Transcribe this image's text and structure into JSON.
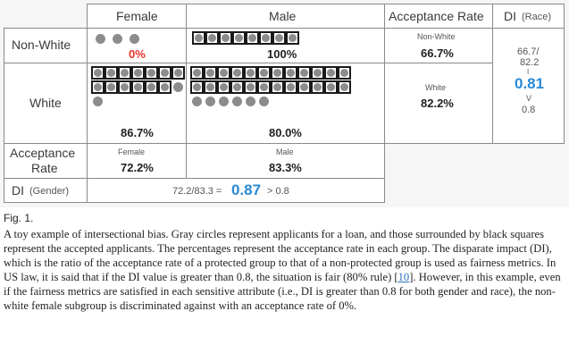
{
  "table": {
    "col_headers": {
      "female": "Female",
      "male": "Male",
      "acceptance_rate": "Acceptance Rate",
      "di": "DI",
      "di_suffix": "(Race)"
    },
    "row_headers": {
      "non_white": "Non-White",
      "white": "White",
      "acceptance_rate_line1": "Acceptance",
      "acceptance_rate_line2": "Rate",
      "di": "DI",
      "di_suffix": "(Gender)"
    },
    "cells": {
      "nonwhite_female_rate": "0%",
      "nonwhite_male_rate": "100%",
      "white_female_rate": "86.7%",
      "white_male_rate": "80.0%",
      "race_nonwhite_label": "Non-White",
      "race_nonwhite_rate": "66.7%",
      "race_white_label": "White",
      "race_white_rate": "82.2%",
      "gender_female_label": "Female",
      "gender_female_rate": "72.2%",
      "gender_male_label": "Male",
      "gender_male_rate": "83.3%"
    },
    "di_race": {
      "formula_top": "66.7/",
      "formula_bottom": "82.2",
      "bar": "I",
      "value": "0.81",
      "compare": "V",
      "threshold": "0.8"
    },
    "di_gender": {
      "formula": "72.2/83.3 =",
      "value": "0.87",
      "compare": "> 0.8"
    },
    "applicants": {
      "nonwhite_female": {
        "accepted": 0,
        "rejected": 3
      },
      "nonwhite_male": {
        "accepted": 6,
        "rejected": 0
      },
      "white_female": {
        "accepted": 13,
        "rejected": 2
      },
      "white_male": {
        "accepted": 24,
        "rejected": 6
      }
    },
    "colors": {
      "accent_blue": "#2a8ad6",
      "accent_red": "#e8342a",
      "circle_gray": "#8c8c8c"
    }
  },
  "caption": {
    "label": "Fig. 1.",
    "text_before_cite": "A toy example of intersectional bias. Gray circles represent applicants for a loan, and those surrounded by black squares represent the accepted applicants. The percentages represent the acceptance rate in each group. The disparate impact (DI), which is the ratio of the acceptance rate of a protected group to that of a non-protected group is used as fairness metrics. In US law, it is said that if the DI value is greater than 0.8, the situation is fair (80% rule) [",
    "cite": "10",
    "text_after_cite": "]. However, in this example, even if the fairness metrics are satisfied in each sensitive attribute (i.e., DI is greater than 0.8 for both gender and race), the non-white female subgroup is discriminated against with an acceptance rate of 0%."
  }
}
